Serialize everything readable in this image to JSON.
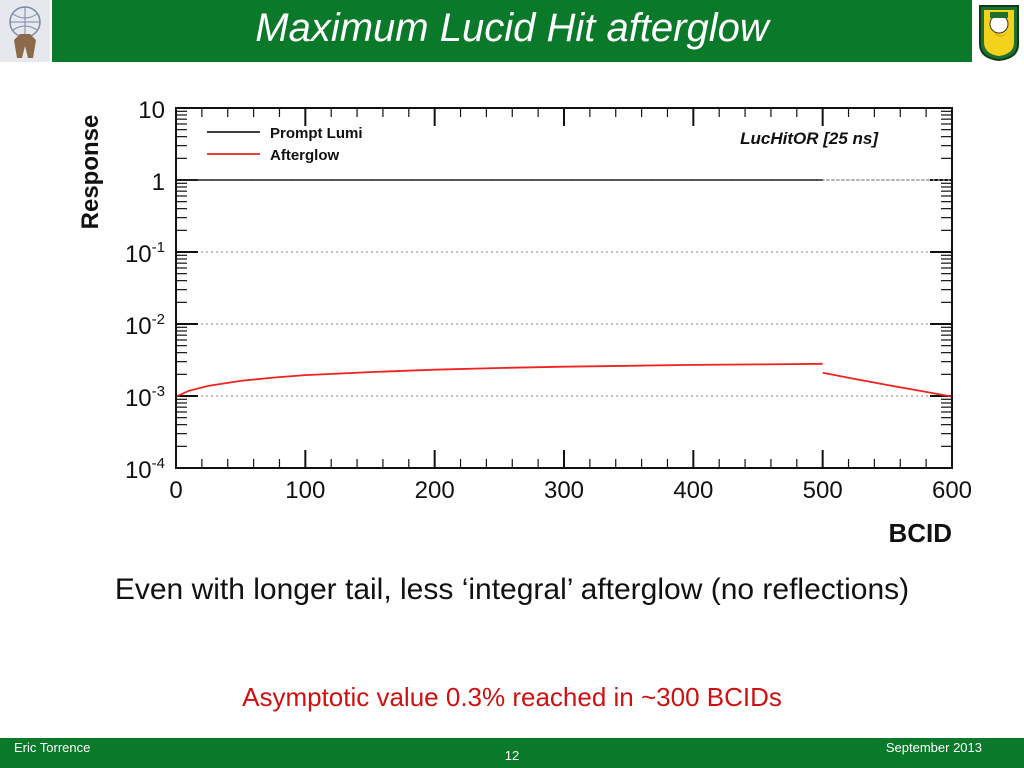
{
  "slide": {
    "title": "Maximum Lucid Hit afterglow",
    "caption": "Even with longer tail, less ‘integral’ afterglow (no reflections)",
    "note": "Asymptotic value 0.3% reached in ~300 BCIDs",
    "footer_left": "Eric Torrence",
    "footer_right": "September 2013",
    "page_number": "12",
    "header_color": "#0a7a2a",
    "note_color": "#d01010",
    "logo_left_icon": "atlas-figure-icon",
    "logo_right_icon": "oregon-duck-icon"
  },
  "chart_data": {
    "type": "line",
    "title": "",
    "annotation": "LucHitOR [25 ns]",
    "xlabel": "BCID",
    "ylabel": "Response",
    "xlim": [
      0,
      600
    ],
    "ylim": [
      0.0001,
      10
    ],
    "yscale": "log",
    "grid": "horizontal dotted at decades",
    "legend_position": "top-left",
    "x_ticks": [
      "0",
      "100",
      "200",
      "300",
      "400",
      "500",
      "600"
    ],
    "y_ticks": [
      {
        "base": "10",
        "exp": "",
        "value": 10
      },
      {
        "base": "1",
        "exp": "",
        "value": 1
      },
      {
        "base": "10",
        "exp": "-1",
        "value": 0.1
      },
      {
        "base": "10",
        "exp": "-2",
        "value": 0.01
      },
      {
        "base": "10",
        "exp": "-3",
        "value": 0.001
      },
      {
        "base": "10",
        "exp": "-4",
        "value": 0.0001
      }
    ],
    "series": [
      {
        "name": "Prompt Lumi",
        "color": "#222222",
        "x": [
          0,
          500
        ],
        "y": [
          1,
          1
        ]
      },
      {
        "name": "Afterglow",
        "color": "#ee2222",
        "x": [
          0,
          10,
          25,
          50,
          75,
          100,
          150,
          200,
          250,
          300,
          350,
          400,
          450,
          500,
          null,
          500,
          525,
          550,
          575,
          600
        ],
        "y": [
          0.00098,
          0.00118,
          0.00138,
          0.00162,
          0.0018,
          0.00195,
          0.00215,
          0.00232,
          0.00245,
          0.00255,
          0.00263,
          0.0027,
          0.00275,
          0.0028,
          null,
          0.0021,
          0.00172,
          0.00142,
          0.00118,
          0.00098
        ]
      }
    ]
  }
}
